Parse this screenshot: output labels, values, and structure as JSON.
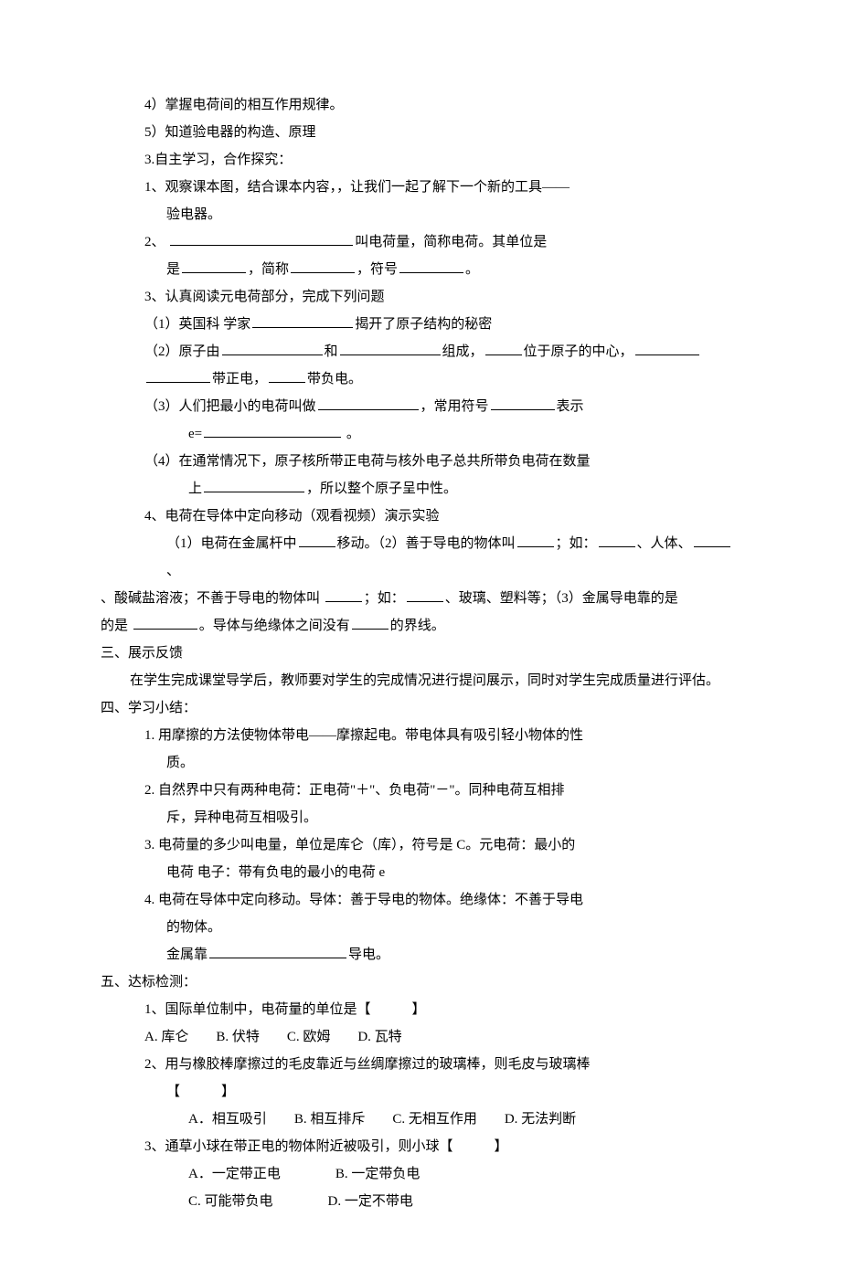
{
  "sec2_items": {
    "i4": "4）掌握电荷间的相互作用规律。",
    "i5": "5）知道验电器的构造、原理",
    "title3": "3.自主学习，合作探究：",
    "p1": "1、观察课本图，结合课本内容，，让我们一起了解下一个新的工具——验电器。",
    "p2a": "2、 ",
    "p2b": "叫电荷量，简称电荷。其单位是",
    "p2c": "，简称",
    "p2d": "，符号",
    "p2e": "。",
    "p3": "3、认真阅读元电荷部分，完成下列问题",
    "p3_1a": "（1）英国科 学家",
    "p3_1b": "揭开了原子结构的秘密",
    "p3_2a": "（2）原子由",
    "p3_2b": "和",
    "p3_2c": "组成，",
    "p3_2d": "位于原子的中心，",
    "p3_2e": "带正电，",
    "p3_2f": "带负电。",
    "p3_3a": "（3）人们把最小的电荷叫做",
    "p3_3b": "，常用符号",
    "p3_3c": "表示",
    "p3_3d": "e=",
    "p3_3e": " 。",
    "p3_4a": "（4）在通常情况下，原子核所带正电荷与核外电子总共所带负电荷在数量上",
    "p3_4b": "，所以整个原子呈中性。",
    "p4": "4、电荷在导体中定向移动（观看视频）演示实验",
    "p4_1a": "（1）电荷在金属杆中",
    "p4_1b": "移动。（2）善于导电的物体叫",
    "p4_1c": "；如：",
    "p4_1d": "、人体、",
    "p4_1e": "、酸碱盐溶液；不善于导电的物体叫 ",
    "p4_1f": "；如：",
    "p4_1g": "、玻璃、塑料等；（3）金属导电靠的是 ",
    "p4_1h": "。导体与绝缘体之间没有",
    "p4_1i": "的界线。"
  },
  "sec3": {
    "title": "三、展示反馈",
    "body": "在学生完成课堂导学后，教师要对学生的完成情况进行提问展示，同时对学生完成质量进行评估。"
  },
  "sec4": {
    "title": "四、学习小结：",
    "i1": "1. 用摩擦的方法使物体带电——摩擦起电。带电体具有吸引轻小物体的性质。",
    "i2": "2. 自然界中只有两种电荷：正电荷\"+\"、负电荷\"-\"。同种电荷互相排斥，异种电荷互相吸引。",
    "i3": "3. 电荷量的多少叫电量，单位是库仑（库），符号是 C。元电荷：最小的电荷 电子：带有负电的最小的电荷 e",
    "i4": "4. 电荷在导体中定向移动。导体：善于导电的物体。绝缘体：不善于导电的物体。",
    "i4b_a": "金属靠",
    "i4b_b": "导电。"
  },
  "sec5": {
    "title": "五、达标检测：",
    "q1": "1、国际单位制中，电荷量的单位是【　　　】",
    "q1_opts": "A. 库仑　　B. 伏特　　C. 欧姆　　D. 瓦特",
    "q2": "2、用与橡胶棒摩擦过的毛皮靠近与丝绸摩擦过的玻璃棒，则毛皮与玻璃棒【　　　】",
    "q2_opts": "A．相互吸引　　B. 相互排斥　　C. 无相互作用　　D. 无法判断",
    "q3": "3、通草小球在带正电的物体附近被吸引，则小球【　　　】",
    "q3_opt1": "A．一定带正电　　　　B. 一定带负电",
    "q3_opt2": "C. 可能带负电　　　　D. 一定不带电"
  }
}
